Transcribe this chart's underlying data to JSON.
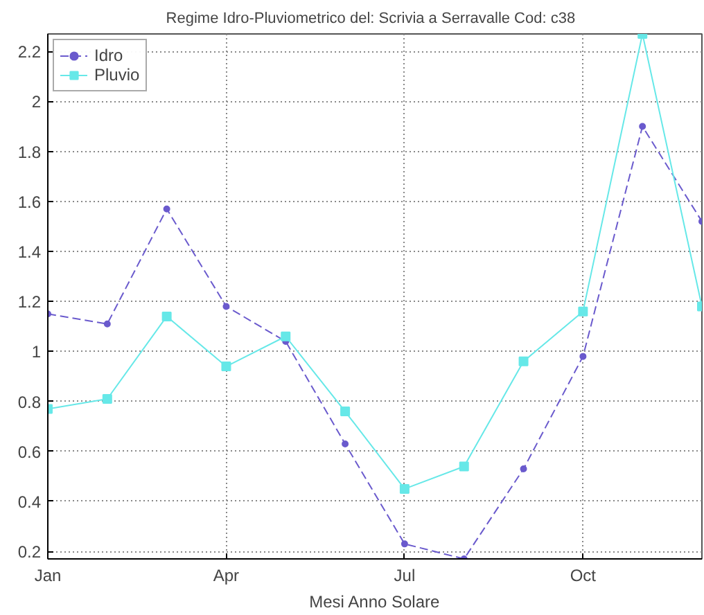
{
  "chart_data": {
    "type": "line",
    "title": "Regime Idro-Pluviometrico del: Scrivia a Serravalle   Cod: c38",
    "xlabel": "Mesi Anno Solare",
    "categories": [
      "Jan",
      null,
      null,
      "Apr",
      null,
      null,
      "Jul",
      null,
      null,
      "Oct",
      null,
      null
    ],
    "ylim": [
      0.17,
      2.27
    ],
    "yticks": [
      0.2,
      0.4,
      0.6,
      0.8,
      1,
      1.2,
      1.4,
      1.6,
      1.8,
      2,
      2.2
    ],
    "series": [
      {
        "name": "Idro",
        "color": "#6a5acd",
        "line_style": "dashed",
        "marker": "circle",
        "values": [
          1.15,
          1.11,
          1.57,
          1.18,
          1.04,
          0.63,
          0.23,
          0.17,
          0.53,
          0.98,
          1.9,
          1.52
        ]
      },
      {
        "name": "Pluvio",
        "color": "#66e8e8",
        "line_style": "solid",
        "marker": "square",
        "values": [
          0.77,
          0.81,
          1.14,
          0.94,
          1.06,
          0.76,
          0.45,
          0.54,
          0.96,
          1.16,
          2.27,
          1.18
        ]
      }
    ],
    "grid": true,
    "legend": "top left"
  }
}
